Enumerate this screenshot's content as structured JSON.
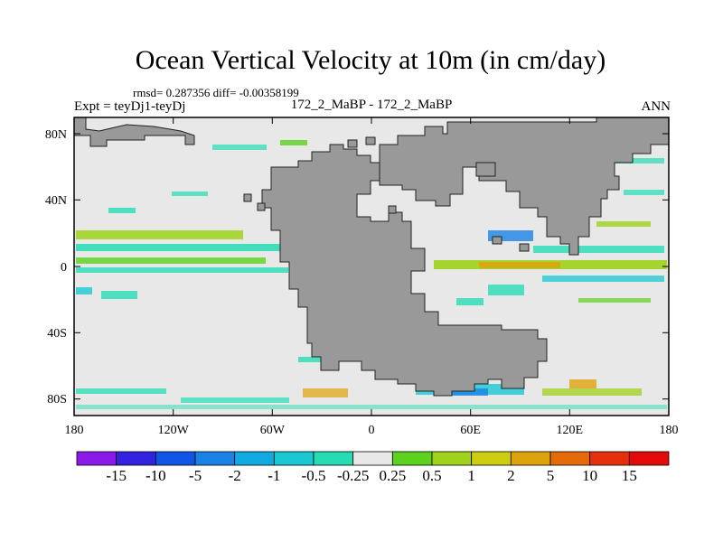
{
  "title": "Ocean Vertical Velocity at 10m (in cm/day)",
  "stats_text": "rmsd= 0.287356 diff= -0.00358199",
  "left_label": "Expt = teyDj1-teyDj",
  "center_label": "172_2_MaBP - 172_2_MaBP",
  "right_label": "ANN",
  "map": {
    "lon_range": [
      -180,
      180
    ],
    "lat_range": [
      -90,
      90
    ],
    "x_ticks": [
      "180",
      "120W",
      "60W",
      "0",
      "60E",
      "120E",
      "180"
    ],
    "y_ticks": [
      "80N",
      "40N",
      "0",
      "40S",
      "80S"
    ],
    "land_color": "#999999",
    "ocean_color": "#e8e8e8"
  },
  "colorbar": {
    "labels": [
      "-15",
      "-10",
      "-5",
      "-2",
      "-1",
      "-0.5",
      "-0.25",
      "0.25",
      "0.5",
      "1",
      "2",
      "5",
      "10",
      "15"
    ],
    "colors": [
      "#8a19ea",
      "#3322dd",
      "#1155e6",
      "#1a82e6",
      "#10aae0",
      "#19c8d2",
      "#25dcb4",
      "#e8e8e8",
      "#5cd21e",
      "#9ed21b",
      "#cdcd12",
      "#dea20d",
      "#e46a0a",
      "#e6300d",
      "#e30a0a"
    ]
  }
}
